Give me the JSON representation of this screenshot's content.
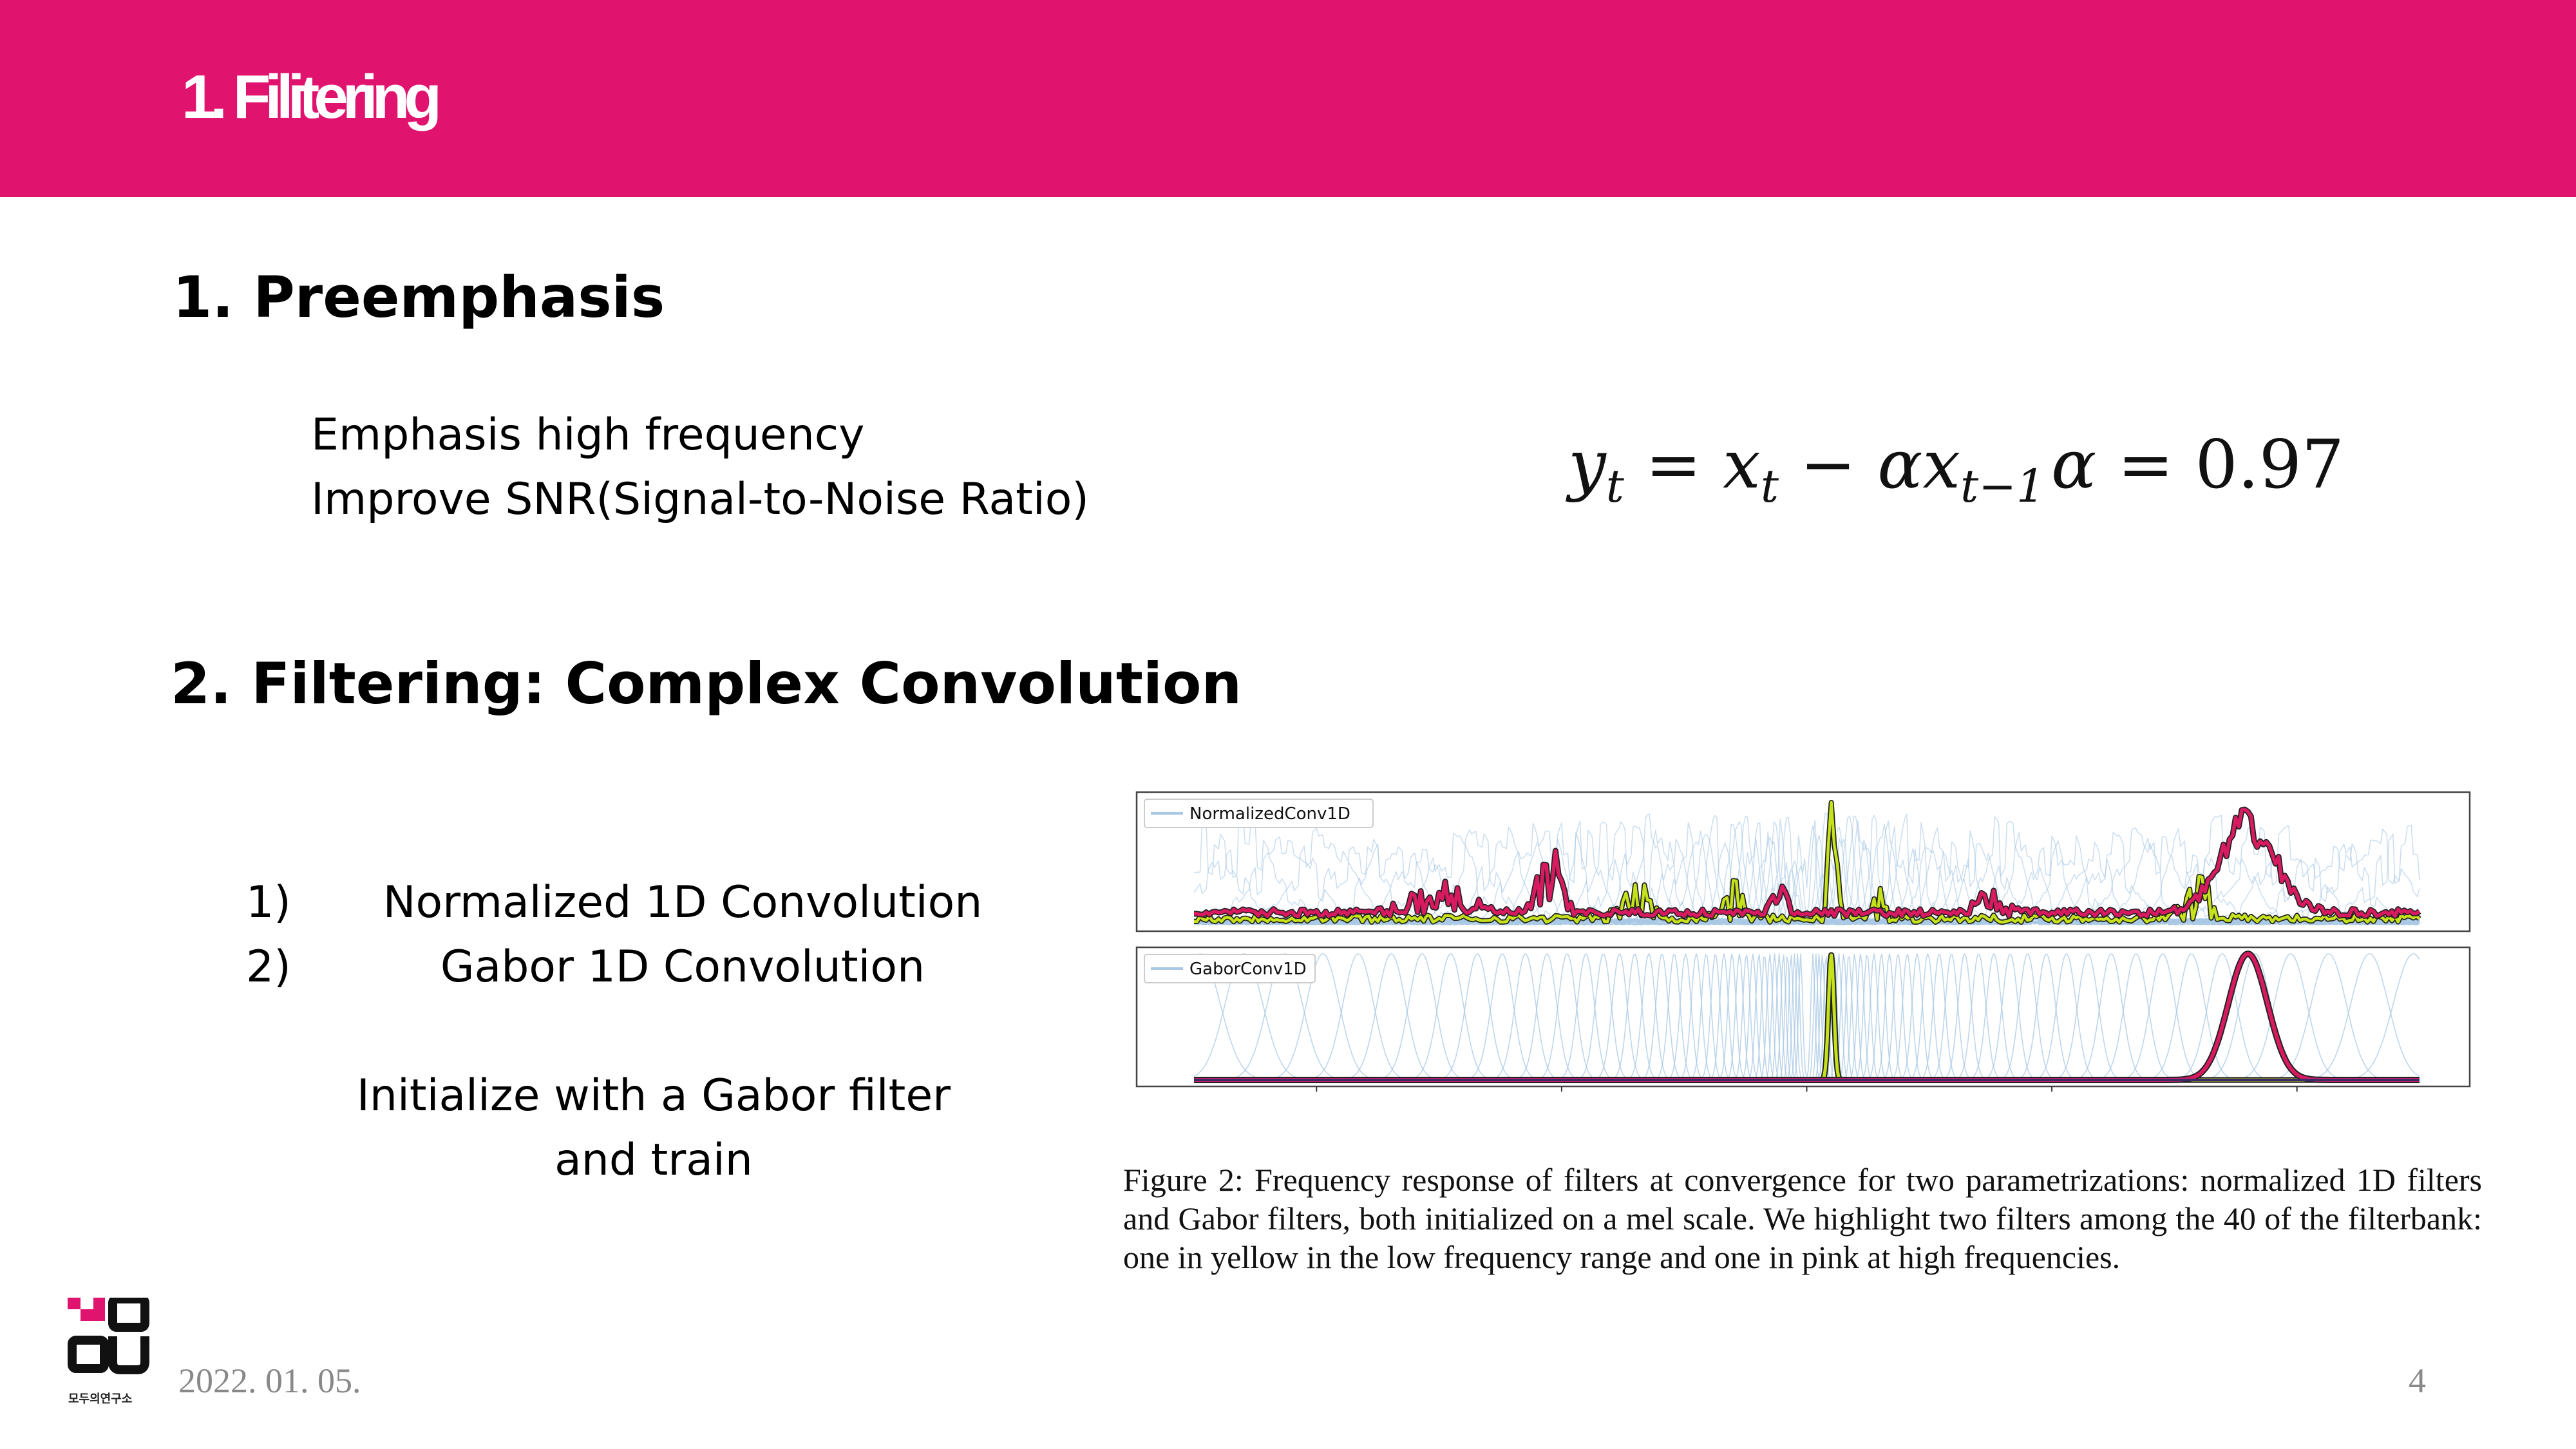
{
  "slide": {
    "title": "1. Filitering",
    "section1_heading": "1. Preemphasis",
    "section1_lines": [
      "Emphasis high frequency",
      "Improve SNR(Signal-to-Noise Ratio)"
    ],
    "formula": {
      "lhs": "y",
      "lhs_sub": "t",
      "rhs_x": "x",
      "rhs_x_sub": "t",
      "minus_term": "αx",
      "minus_sub": "t−1",
      "alpha_symbol": "α",
      "alpha_value": "= 0.97"
    },
    "section2_heading": "2. Filtering: Complex Convolution",
    "list": [
      {
        "num": "1)",
        "text": "Normalized 1D Convolution"
      },
      {
        "num": "2)",
        "text": "Gabor 1D Convolution"
      }
    ],
    "note_lines": [
      "Initialize with a Gabor filter",
      "and train"
    ],
    "caption": "Figure 2: Frequency response of filters at convergence for two parametrizations: normalized 1D filters and Gabor filters, both initialized on a mel scale. We highlight two filters among the 40 of the filterbank: one in yellow in the low frequency range and one in pink at high frequencies.",
    "footer_date": "2022. 01. 05.",
    "page_number": "4",
    "logo_text": "모두의연구소"
  },
  "colors": {
    "header": "#e0146f",
    "pink_filter": "#d81b60",
    "yellow_filter": "#c6e21a",
    "blue_filters": "#a8c8e4"
  },
  "chart_data": {
    "type": "line",
    "panels": [
      {
        "legend": "NormalizedConv1D",
        "legend_position": "top-left"
      },
      {
        "legend": "GaborConv1D",
        "legend_position": "top-left"
      }
    ],
    "x_ticks": [
      "−0.4",
      "−0.2",
      "0.0",
      "0.2",
      "0.4"
    ],
    "x_tick_values": [
      -0.4,
      -0.2,
      0.0,
      0.2,
      0.4
    ],
    "xlim": [
      -0.5,
      0.5
    ],
    "highlighted": {
      "yellow_center": 0.02,
      "pink_center": 0.36
    }
  }
}
